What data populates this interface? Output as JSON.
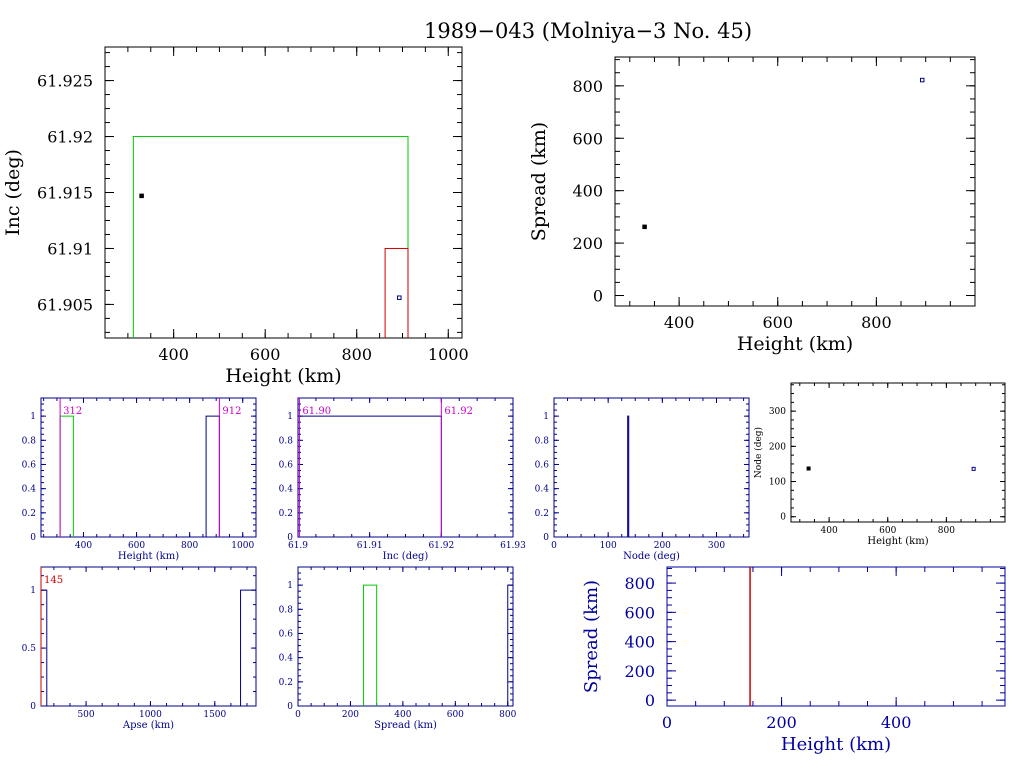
{
  "title": "1989−043 (Molniya−3 No. 45)",
  "colors": {
    "black": "#000000",
    "green": "#00cc00",
    "red": "#cc0000",
    "blue": "#00008b",
    "magenta": "#cc00cc",
    "navy": "#0000a0"
  },
  "chart_data": [
    {
      "id": "inc-vs-height",
      "type": "scatter",
      "xlabel": "Height (km)",
      "ylabel": "Inc (deg)",
      "xlim": [
        250,
        1030
      ],
      "ylim": [
        61.902,
        61.928
      ],
      "xticks": [
        400,
        600,
        800,
        1000
      ],
      "xtick_labels": [
        "400",
        "600",
        "800",
        "1000"
      ],
      "yticks": [
        61.905,
        61.91,
        61.915,
        61.92,
        61.925
      ],
      "ytick_labels": [
        "61.905",
        "61.91",
        "61.915",
        "61.92",
        "61.925"
      ],
      "points": [
        {
          "x": 330,
          "y": 61.9147,
          "color": "black"
        },
        {
          "x": 893,
          "y": 61.9056,
          "color": "blue"
        }
      ],
      "boxes": [
        {
          "x0": 312,
          "x1": 912,
          "y0": 61.902,
          "y1": 61.92,
          "color": "green"
        },
        {
          "x0": 862,
          "x1": 912,
          "y0": 61.902,
          "y1": 61.91,
          "color": "red"
        }
      ]
    },
    {
      "id": "spread-vs-height",
      "type": "scatter",
      "xlabel": "Height (km)",
      "ylabel": "Spread (km)",
      "xlim": [
        270,
        1000
      ],
      "ylim": [
        -40,
        910
      ],
      "xticks": [
        400,
        600,
        800
      ],
      "xtick_labels": [
        "400",
        "600",
        "800"
      ],
      "yticks": [
        0,
        200,
        400,
        600,
        800
      ],
      "ytick_labels": [
        "0",
        "200",
        "400",
        "600",
        "800"
      ],
      "points": [
        {
          "x": 330,
          "y": 262,
          "color": "black"
        },
        {
          "x": 893,
          "y": 822,
          "color": "blue"
        }
      ]
    },
    {
      "id": "height-histogram",
      "type": "bar",
      "xlabel": "Height (km)",
      "ylabel": "",
      "xlim": [
        240,
        1050
      ],
      "ylim": [
        0,
        1.15
      ],
      "xticks": [
        400,
        600,
        800,
        1000
      ],
      "xtick_labels": [
        "400",
        "600",
        "800",
        "1000"
      ],
      "yticks": [
        0,
        0.2,
        0.4,
        0.6,
        0.8,
        1
      ],
      "ytick_labels": [
        "0",
        "0.2",
        "0.4",
        "0.6",
        "0.8",
        "1"
      ],
      "bars": [
        {
          "x0": 312,
          "x1": 362,
          "y": 1,
          "color": "green"
        },
        {
          "x0": 862,
          "x1": 912,
          "y": 1,
          "color": "blue"
        }
      ],
      "markers": [
        {
          "x": 312,
          "label": "312",
          "color": "magenta"
        },
        {
          "x": 912,
          "label": "912",
          "color": "magenta"
        }
      ]
    },
    {
      "id": "inc-histogram",
      "type": "bar",
      "xlabel": "Inc (deg)",
      "ylabel": "",
      "xlim": [
        61.9,
        61.93
      ],
      "ylim": [
        0,
        1.15
      ],
      "xticks": [
        61.9,
        61.91,
        61.92,
        61.93
      ],
      "xtick_labels": [
        "61.9",
        "61.91",
        "61.92",
        "61.93"
      ],
      "yticks": [
        0,
        0.2,
        0.4,
        0.6,
        0.8,
        1
      ],
      "ytick_labels": [
        "0",
        "0.2",
        "0.4",
        "0.6",
        "0.8",
        "1"
      ],
      "bars": [
        {
          "x0": 61.9,
          "x1": 61.92,
          "y": 1,
          "color": "blue"
        }
      ],
      "markers": [
        {
          "x": 61.9002,
          "label": "61.90",
          "color": "magenta"
        },
        {
          "x": 61.92,
          "label": "61.92",
          "color": "magenta"
        }
      ]
    },
    {
      "id": "node-histogram",
      "type": "bar",
      "xlabel": "Node (deg)",
      "ylabel": "",
      "xlim": [
        0,
        360
      ],
      "ylim": [
        0,
        1.15
      ],
      "xticks": [
        0,
        100,
        200,
        300
      ],
      "xtick_labels": [
        "0",
        "100",
        "200",
        "300"
      ],
      "yticks": [
        0,
        0.2,
        0.4,
        0.6,
        0.8,
        1
      ],
      "ytick_labels": [
        "0",
        "0.2",
        "0.4",
        "0.6",
        "0.8",
        "1"
      ],
      "bars": [
        {
          "x0": 136,
          "x1": 138,
          "y": 1,
          "color": "blue"
        }
      ]
    },
    {
      "id": "node-vs-height",
      "type": "scatter",
      "xlabel": "Height (km)",
      "ylabel": "Node (deg)",
      "xlim": [
        270,
        1000
      ],
      "ylim": [
        -15,
        380
      ],
      "xticks": [
        400,
        600,
        800
      ],
      "xtick_labels": [
        "400",
        "600",
        "800"
      ],
      "yticks": [
        0,
        100,
        200,
        300
      ],
      "ytick_labels": [
        "0",
        "100",
        "200",
        "300"
      ],
      "points": [
        {
          "x": 330,
          "y": 137,
          "color": "black"
        },
        {
          "x": 893,
          "y": 136,
          "color": "blue"
        }
      ]
    },
    {
      "id": "apse-histogram",
      "type": "bar",
      "xlabel": "Apse (km)",
      "ylabel": "",
      "xlim": [
        150,
        1820
      ],
      "ylim": [
        0,
        1.2
      ],
      "xticks": [
        500,
        1000,
        1500
      ],
      "xtick_labels": [
        "500",
        "1000",
        "1500"
      ],
      "yticks": [
        0,
        0.5,
        1
      ],
      "ytick_labels": [
        "0",
        "0.5",
        "1"
      ],
      "bars": [
        {
          "x0": 145,
          "x1": 195,
          "y": 1,
          "color": "blue"
        },
        {
          "x0": 1700,
          "x1": 1820,
          "y": 1,
          "color": "blue"
        }
      ],
      "markers": [
        {
          "x": 150,
          "label": "145",
          "color": "red"
        }
      ]
    },
    {
      "id": "spread-histogram",
      "type": "bar",
      "xlabel": "Spread (km)",
      "ylabel": "",
      "xlim": [
        0,
        820
      ],
      "ylim": [
        0,
        1.15
      ],
      "xticks": [
        0,
        200,
        400,
        600,
        800
      ],
      "xtick_labels": [
        "0",
        "200",
        "400",
        "600",
        "800"
      ],
      "yticks": [
        0,
        0.2,
        0.4,
        0.6,
        0.8,
        1
      ],
      "ytick_labels": [
        "0",
        "0.2",
        "0.4",
        "0.6",
        "0.8",
        "1"
      ],
      "bars": [
        {
          "x0": 250,
          "x1": 300,
          "y": 1,
          "color": "green"
        },
        {
          "x0": 800,
          "x1": 850,
          "y": 1,
          "color": "blue"
        }
      ]
    },
    {
      "id": "spread-vs-height-2",
      "type": "line",
      "xlabel": "Height (km)",
      "ylabel": "Spread (km)",
      "xlim": [
        0,
        590
      ],
      "ylim": [
        -40,
        910
      ],
      "xticks": [
        0,
        200,
        400
      ],
      "xtick_labels": [
        "0",
        "200",
        "400"
      ],
      "yticks": [
        0,
        200,
        400,
        600,
        800
      ],
      "ytick_labels": [
        "0",
        "200",
        "400",
        "600",
        "800"
      ],
      "vlines": [
        {
          "x": 145,
          "color": "red"
        }
      ]
    }
  ]
}
